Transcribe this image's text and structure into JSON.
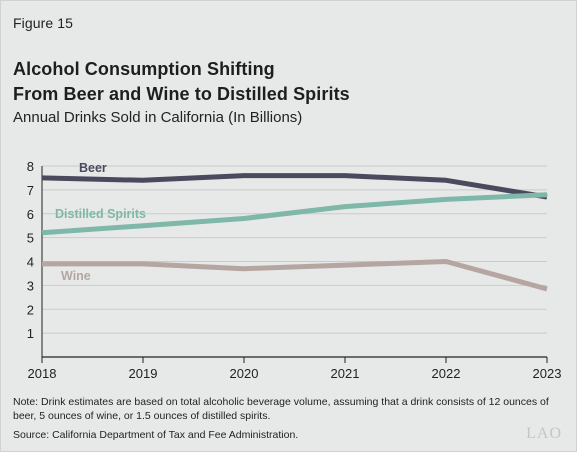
{
  "figure_label": "Figure 15",
  "title_line1": "Alcohol Consumption Shifting",
  "title_line2": "From Beer and Wine to Distilled Spirits",
  "subtitle": "Annual Drinks Sold in California (In Billions)",
  "note": "Note: Drink estimates are based on total alcoholic beverage volume, assuming that a drink consists of 12 ounces of beer, 5 ounces of wine, or 1.5 ounces of distilled spirits.",
  "source": "Source: California Department of Tax and Fee Administration.",
  "logo_text": "LAO",
  "chart_data": {
    "type": "line",
    "title": "Alcohol Consumption Shifting From Beer and Wine to Distilled Spirits",
    "subtitle": "Annual Drinks Sold in California (In Billions)",
    "x": [
      "2018",
      "2019",
      "2020",
      "2021",
      "2022",
      "2023"
    ],
    "ylim": [
      0,
      8
    ],
    "yticks": [
      1,
      2,
      3,
      4,
      5,
      6,
      7,
      8
    ],
    "grid": true,
    "legend": "inline labels",
    "series": [
      {
        "name": "Beer",
        "color": "#4a4a5e",
        "values": [
          7.5,
          7.4,
          7.6,
          7.6,
          7.4,
          6.7
        ]
      },
      {
        "name": "Distilled Spirits",
        "color": "#7fb8a8",
        "values": [
          5.2,
          5.5,
          5.8,
          6.3,
          6.6,
          6.8
        ]
      },
      {
        "name": "Wine",
        "color": "#b5a6a2",
        "values": [
          3.9,
          3.9,
          3.7,
          3.85,
          4.0,
          2.85
        ]
      }
    ]
  }
}
